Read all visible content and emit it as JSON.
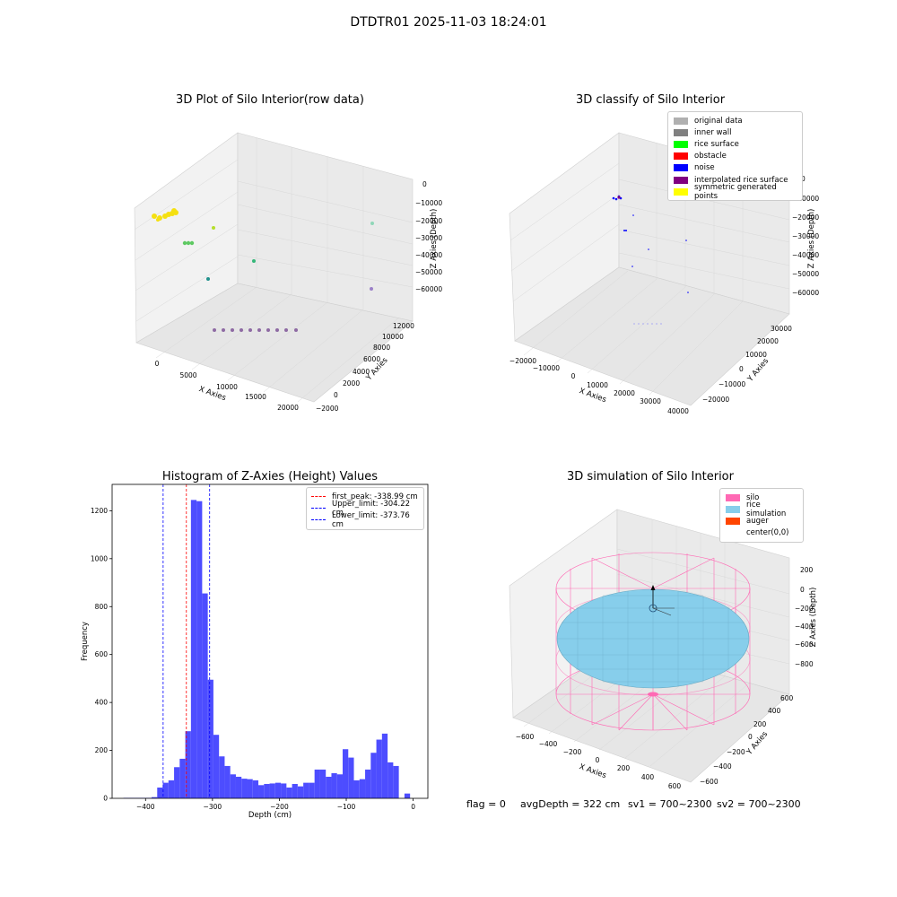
{
  "suptitle": "DTDTR01 2025-11-03 18:24:01",
  "panel_titles": {
    "raw": "3D Plot of Silo Interior(row data)",
    "classify": "3D classify of Silo Interior",
    "histogram": "Histogram of Z-Axies (Height) Values",
    "simulation": "3D simulation of Silo Interior"
  },
  "footer": {
    "flag": "flag = 0",
    "avg": "avgDepth = 322 cm",
    "sv1": "sv1 = 700~2300",
    "sv2": "sv2 = 700~2300"
  },
  "colors": {
    "hist_bar": "#4d4dff",
    "first_peak": "#ff0000",
    "limits": "#0000ff",
    "silo": "#ff69b4",
    "rice": "#87ceeb",
    "auger": "#ff4500",
    "pane": "#f2f2f2"
  },
  "classify_legend": [
    {
      "label": "original data",
      "color": "#b0b0b0"
    },
    {
      "label": "inner wall",
      "color": "#808080"
    },
    {
      "label": "rice surface",
      "color": "#00ff00"
    },
    {
      "label": "obstacle",
      "color": "#ff0000"
    },
    {
      "label": "noise",
      "color": "#0000ff"
    },
    {
      "label": "interpolated rice surface",
      "color": "#800080"
    },
    {
      "label": "symmetric generated points",
      "color": "#ffff00"
    }
  ],
  "simulation_legend": [
    {
      "label": "silo",
      "color": "#ff69b4"
    },
    {
      "label": "rice simulation",
      "color": "#87ceeb"
    },
    {
      "label": "auger",
      "color": "#ff4500"
    },
    {
      "label": "center(0,0)",
      "color": ""
    }
  ],
  "chart_data": [
    {
      "type": "scatter",
      "title": "3D Plot of Silo Interior(row data)",
      "xlabel": "X Axies",
      "ylabel": "Y Axies",
      "zlabel": "Z Axies (Depth)",
      "x_ticks": [
        "0",
        "5000",
        "10000",
        "15000",
        "20000"
      ],
      "y_ticks": [
        "−2000",
        "0",
        "2000",
        "4000",
        "6000",
        "8000",
        "10000",
        "12000"
      ],
      "z_ticks": [
        "0",
        "−10000",
        "−20000",
        "−30000",
        "−40000",
        "−50000",
        "−60000"
      ]
    },
    {
      "type": "scatter",
      "title": "3D classify of Silo Interior",
      "xlabel": "X Axies",
      "ylabel": "Y Axies",
      "zlabel": "Z Axies (Depth)",
      "x_ticks": [
        "−20000",
        "−10000",
        "0",
        "10000",
        "20000",
        "30000",
        "40000"
      ],
      "y_ticks": [
        "−20000",
        "−10000",
        "0",
        "10000",
        "20000",
        "30000"
      ],
      "z_ticks": [
        "0",
        "−10000",
        "−20000",
        "−30000",
        "−40000",
        "−50000",
        "−60000"
      ]
    },
    {
      "type": "bar",
      "title": "Histogram of Z-Axies (Height) Values",
      "xlabel": "Depth (cm)",
      "ylabel": "Frequency",
      "xlim": [
        -450,
        22
      ],
      "ylim": [
        0,
        1310
      ],
      "x_ticks": [
        -400,
        -300,
        -200,
        -100,
        0
      ],
      "y_ticks": [
        0,
        200,
        400,
        600,
        800,
        1000,
        1200
      ],
      "bin_width": 8.4,
      "bin_start": -433.0,
      "values": [
        2,
        2,
        2,
        2,
        2,
        5,
        45,
        65,
        75,
        130,
        165,
        280,
        1245,
        1240,
        855,
        495,
        265,
        175,
        135,
        100,
        90,
        82,
        80,
        75,
        55,
        60,
        62,
        65,
        62,
        45,
        60,
        50,
        65,
        65,
        120,
        120,
        90,
        105,
        100,
        205,
        170,
        75,
        80,
        120,
        190,
        245,
        270,
        150,
        135,
        0,
        20
      ],
      "lines": [
        {
          "label": "first_peak: -338.99 cm",
          "x": -338.99,
          "color": "#ff0000"
        },
        {
          "label": "Upper_limit: -304.22 cm",
          "x": -304.22,
          "color": "#0000ff"
        },
        {
          "label": "Lower_limit: -373.76 cm",
          "x": -373.76,
          "color": "#0000ff"
        }
      ]
    },
    {
      "type": "scatter",
      "title": "3D simulation of Silo Interior",
      "xlabel": "X Axies",
      "ylabel": "Y Axies",
      "zlabel": "Z Axies (Depth)",
      "x_ticks": [
        "−600",
        "−400",
        "−200",
        "0",
        "200",
        "400",
        "600"
      ],
      "y_ticks": [
        "−600",
        "−400",
        "−200",
        "0",
        "200",
        "400",
        "600"
      ],
      "z_ticks": [
        "200",
        "0",
        "−200",
        "−400",
        "−600",
        "−800"
      ]
    }
  ]
}
